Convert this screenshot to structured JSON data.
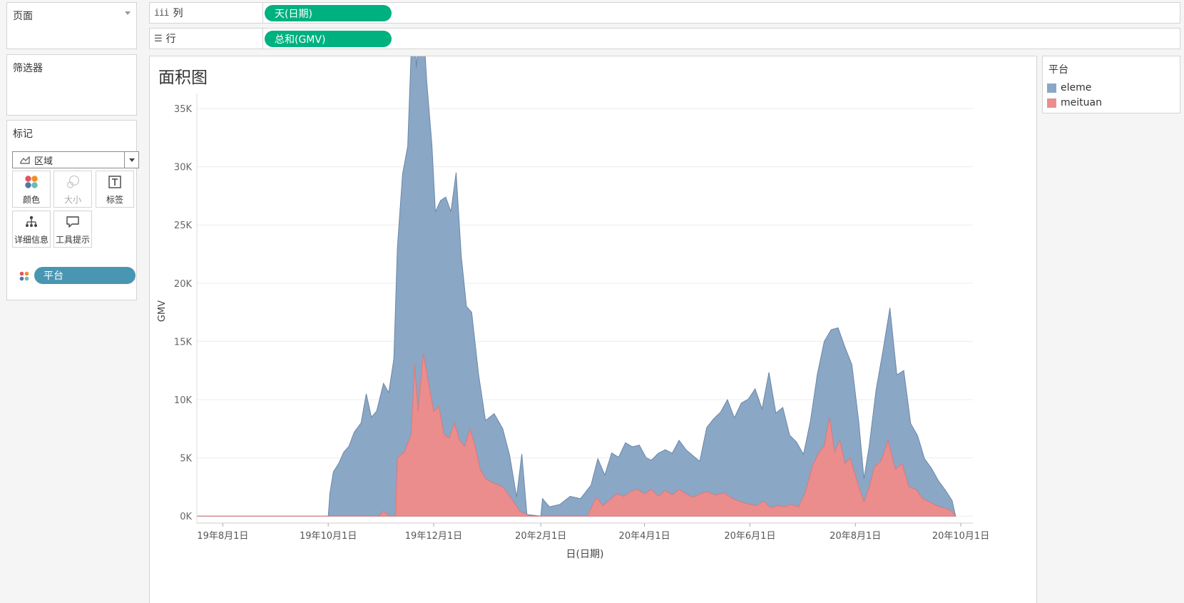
{
  "pages_panel": {
    "title": "页面"
  },
  "columns_shelf": {
    "icon": "iii",
    "label": "列",
    "pill": "天(日期)"
  },
  "rows_shelf": {
    "icon": "☰",
    "label": "行",
    "pill": "总和(GMV)"
  },
  "filters_panel": {
    "title": "筛选器"
  },
  "marks_panel": {
    "title": "标记",
    "mark_type": "区域",
    "buttons": [
      {
        "label": "颜色",
        "icon": "color-dots-icon"
      },
      {
        "label": "大小",
        "icon": "size-icon",
        "disabled": true
      },
      {
        "label": "标签",
        "icon": "text-label-icon"
      },
      {
        "label": "详细信息",
        "icon": "detail-tree-icon"
      },
      {
        "label": "工具提示",
        "icon": "tooltip-bubble-icon"
      }
    ],
    "field": "平台"
  },
  "legend": {
    "title": "平台",
    "items": [
      {
        "label": "eleme",
        "color": "#8aa7c6"
      },
      {
        "label": "meituan",
        "color": "#ec8d8d"
      }
    ]
  },
  "chart_data": {
    "type": "area",
    "title": "面积图",
    "xlabel": "日(日期)",
    "ylabel": "GMV",
    "x_range": [
      "2019-07-17",
      "2020-10-08"
    ],
    "ylim": [
      -600,
      35800
    ],
    "yticks": [
      "0K",
      "5K",
      "10K",
      "15K",
      "20K",
      "25K",
      "30K",
      "35K"
    ],
    "xticks": [
      {
        "label": "19年8月1日",
        "date": "2019-08-01"
      },
      {
        "label": "19年10月1日",
        "date": "2019-10-01"
      },
      {
        "label": "19年12月1日",
        "date": "2019-12-01"
      },
      {
        "label": "20年2月1日",
        "date": "2020-02-01"
      },
      {
        "label": "20年4月1日",
        "date": "2020-04-01"
      },
      {
        "label": "20年6月1日",
        "date": "2020-06-01"
      },
      {
        "label": "20年8月1日",
        "date": "2020-08-01"
      },
      {
        "label": "20年10月1日",
        "date": "2020-10-01"
      }
    ],
    "grid": true,
    "legend_position": "right panel",
    "stacked": true,
    "series": [
      {
        "name": "meituan",
        "color": "#ec8d8d",
        "points": [
          [
            "2019-07-17",
            0
          ],
          [
            "2019-07-27",
            0
          ],
          [
            "2019-10-01",
            0
          ],
          [
            "2019-10-30",
            0
          ],
          [
            "2019-11-02",
            400
          ],
          [
            "2019-11-06",
            0
          ],
          [
            "2019-11-09",
            0
          ],
          [
            "2019-11-10",
            5000
          ],
          [
            "2019-11-14",
            5500
          ],
          [
            "2019-11-18",
            7000
          ],
          [
            "2019-11-20",
            13000
          ],
          [
            "2019-11-22",
            9000
          ],
          [
            "2019-11-25",
            14000
          ],
          [
            "2019-11-28",
            11500
          ],
          [
            "2019-12-01",
            9000
          ],
          [
            "2019-12-04",
            9400
          ],
          [
            "2019-12-07",
            7000
          ],
          [
            "2019-12-10",
            6700
          ],
          [
            "2019-12-13",
            8000
          ],
          [
            "2019-12-16",
            6500
          ],
          [
            "2019-12-19",
            6000
          ],
          [
            "2019-12-22",
            7500
          ],
          [
            "2019-12-25",
            6000
          ],
          [
            "2019-12-28",
            4000
          ],
          [
            "2019-12-31",
            3200
          ],
          [
            "2020-01-05",
            2800
          ],
          [
            "2020-01-10",
            2500
          ],
          [
            "2020-01-15",
            1500
          ],
          [
            "2020-01-20",
            400
          ],
          [
            "2020-01-26",
            0
          ],
          [
            "2020-02-01",
            0
          ],
          [
            "2020-02-28",
            0
          ],
          [
            "2020-03-04",
            1600
          ],
          [
            "2020-03-08",
            900
          ],
          [
            "2020-03-12",
            1400
          ],
          [
            "2020-03-16",
            1900
          ],
          [
            "2020-03-20",
            1700
          ],
          [
            "2020-03-24",
            2100
          ],
          [
            "2020-03-28",
            2300
          ],
          [
            "2020-04-01",
            1900
          ],
          [
            "2020-04-05",
            2300
          ],
          [
            "2020-04-09",
            1700
          ],
          [
            "2020-04-13",
            2200
          ],
          [
            "2020-04-17",
            1800
          ],
          [
            "2020-04-21",
            2300
          ],
          [
            "2020-04-25",
            1900
          ],
          [
            "2020-04-29",
            1600
          ],
          [
            "2020-05-03",
            1900
          ],
          [
            "2020-05-07",
            2100
          ],
          [
            "2020-05-12",
            1800
          ],
          [
            "2020-05-17",
            2000
          ],
          [
            "2020-05-22",
            1500
          ],
          [
            "2020-05-27",
            1200
          ],
          [
            "2020-06-01",
            1000
          ],
          [
            "2020-06-05",
            900
          ],
          [
            "2020-06-09",
            1300
          ],
          [
            "2020-06-13",
            700
          ],
          [
            "2020-06-17",
            900
          ],
          [
            "2020-06-21",
            800
          ],
          [
            "2020-06-25",
            1000
          ],
          [
            "2020-06-29",
            800
          ],
          [
            "2020-07-03",
            2000
          ],
          [
            "2020-07-07",
            4200
          ],
          [
            "2020-07-11",
            5500
          ],
          [
            "2020-07-14",
            6000
          ],
          [
            "2020-07-17",
            8500
          ],
          [
            "2020-07-20",
            5500
          ],
          [
            "2020-07-23",
            6500
          ],
          [
            "2020-07-26",
            4500
          ],
          [
            "2020-07-29",
            5000
          ],
          [
            "2020-08-02",
            3000
          ],
          [
            "2020-08-06",
            1200
          ],
          [
            "2020-08-09",
            2500
          ],
          [
            "2020-08-12",
            4200
          ],
          [
            "2020-08-16",
            4800
          ],
          [
            "2020-08-20",
            6500
          ],
          [
            "2020-08-24",
            4000
          ],
          [
            "2020-08-28",
            4500
          ],
          [
            "2020-09-01",
            2500
          ],
          [
            "2020-09-05",
            2300
          ],
          [
            "2020-09-09",
            1500
          ],
          [
            "2020-09-13",
            1200
          ],
          [
            "2020-09-17",
            900
          ],
          [
            "2020-09-21",
            700
          ],
          [
            "2020-09-25",
            500
          ],
          [
            "2020-09-28",
            0
          ]
        ]
      },
      {
        "name": "eleme",
        "color": "#8aa7c6",
        "points": [
          [
            "2019-07-17",
            0
          ],
          [
            "2019-07-27",
            0
          ],
          [
            "2019-10-01",
            0
          ],
          [
            "2019-10-02",
            2000
          ],
          [
            "2019-10-04",
            3800
          ],
          [
            "2019-10-07",
            4500
          ],
          [
            "2019-10-10",
            5500
          ],
          [
            "2019-10-13",
            6000
          ],
          [
            "2019-10-16",
            7200
          ],
          [
            "2019-10-20",
            8000
          ],
          [
            "2019-10-23",
            10500
          ],
          [
            "2019-10-26",
            8500
          ],
          [
            "2019-10-29",
            9000
          ],
          [
            "2019-11-02",
            11000
          ],
          [
            "2019-11-05",
            10500
          ],
          [
            "2019-11-08",
            13500
          ],
          [
            "2019-11-10",
            18000
          ],
          [
            "2019-11-13",
            24000
          ],
          [
            "2019-11-16",
            25500
          ],
          [
            "2019-11-19",
            34000
          ],
          [
            "2019-11-21",
            27500
          ],
          [
            "2019-11-24",
            32500
          ],
          [
            "2019-11-27",
            25000
          ],
          [
            "2019-11-30",
            22000
          ],
          [
            "2019-12-02",
            17000
          ],
          [
            "2019-12-05",
            18500
          ],
          [
            "2019-12-08",
            20500
          ],
          [
            "2019-12-11",
            19000
          ],
          [
            "2019-12-14",
            22000
          ],
          [
            "2019-12-17",
            16000
          ],
          [
            "2019-12-20",
            11500
          ],
          [
            "2019-12-23",
            10500
          ],
          [
            "2019-12-27",
            7500
          ],
          [
            "2019-12-31",
            5000
          ],
          [
            "2020-01-05",
            6000
          ],
          [
            "2020-01-10",
            5000
          ],
          [
            "2020-01-14",
            3500
          ],
          [
            "2020-01-18",
            800
          ],
          [
            "2020-01-21",
            5000
          ],
          [
            "2020-01-24",
            0
          ],
          [
            "2020-02-01",
            0
          ],
          [
            "2020-02-02",
            1500
          ],
          [
            "2020-02-06",
            800
          ],
          [
            "2020-02-12",
            1000
          ],
          [
            "2020-02-18",
            1700
          ],
          [
            "2020-02-24",
            1500
          ],
          [
            "2020-03-01",
            2000
          ],
          [
            "2020-03-05",
            3500
          ],
          [
            "2020-03-09",
            2500
          ],
          [
            "2020-03-13",
            3900
          ],
          [
            "2020-03-17",
            3200
          ],
          [
            "2020-03-21",
            4500
          ],
          [
            "2020-03-25",
            3800
          ],
          [
            "2020-03-29",
            3900
          ],
          [
            "2020-04-02",
            3000
          ],
          [
            "2020-04-05",
            2500
          ],
          [
            "2020-04-09",
            3700
          ],
          [
            "2020-04-13",
            3500
          ],
          [
            "2020-04-17",
            3600
          ],
          [
            "2020-04-21",
            4200
          ],
          [
            "2020-04-25",
            3800
          ],
          [
            "2020-04-29",
            3600
          ],
          [
            "2020-05-03",
            2800
          ],
          [
            "2020-05-07",
            5500
          ],
          [
            "2020-05-11",
            6500
          ],
          [
            "2020-05-15",
            7000
          ],
          [
            "2020-05-19",
            8200
          ],
          [
            "2020-05-23",
            7000
          ],
          [
            "2020-05-27",
            8500
          ],
          [
            "2020-05-31",
            9000
          ],
          [
            "2020-06-04",
            10000
          ],
          [
            "2020-06-08",
            8000
          ],
          [
            "2020-06-12",
            11500
          ],
          [
            "2020-06-16",
            8000
          ],
          [
            "2020-06-20",
            8500
          ],
          [
            "2020-06-24",
            6000
          ],
          [
            "2020-06-28",
            5500
          ],
          [
            "2020-07-02",
            3600
          ],
          [
            "2020-07-06",
            4500
          ],
          [
            "2020-07-10",
            7000
          ],
          [
            "2020-07-14",
            9000
          ],
          [
            "2020-07-18",
            8500
          ],
          [
            "2020-07-22",
            10000
          ],
          [
            "2020-07-26",
            10000
          ],
          [
            "2020-07-30",
            8500
          ],
          [
            "2020-08-03",
            5500
          ],
          [
            "2020-08-06",
            2000
          ],
          [
            "2020-08-09",
            3500
          ],
          [
            "2020-08-13",
            6500
          ],
          [
            "2020-08-17",
            9000
          ],
          [
            "2020-08-21",
            12000
          ],
          [
            "2020-08-25",
            8000
          ],
          [
            "2020-08-29",
            8500
          ],
          [
            "2020-09-02",
            5500
          ],
          [
            "2020-09-06",
            4800
          ],
          [
            "2020-09-10",
            3500
          ],
          [
            "2020-09-14",
            3000
          ],
          [
            "2020-09-18",
            2200
          ],
          [
            "2020-09-22",
            1600
          ],
          [
            "2020-09-26",
            1000
          ],
          [
            "2020-09-28",
            0
          ]
        ]
      }
    ]
  }
}
